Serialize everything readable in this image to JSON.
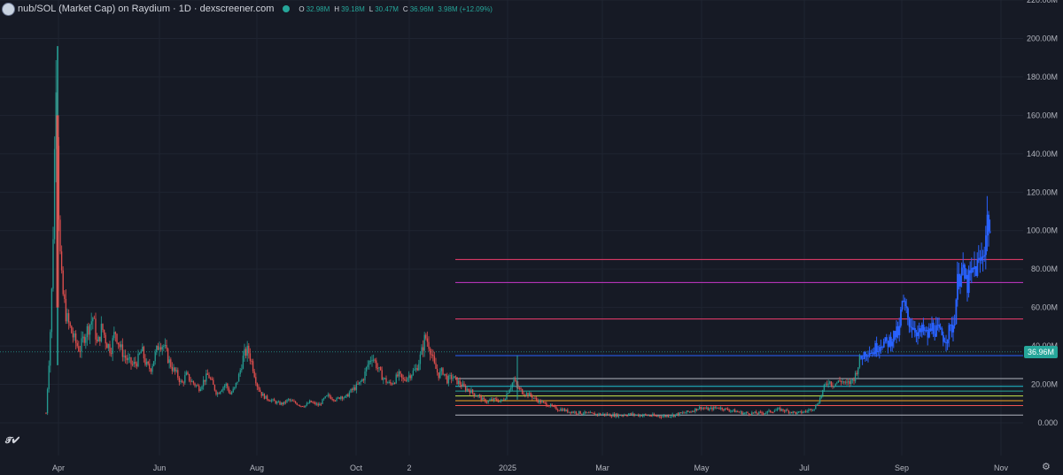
{
  "header": {
    "title": "nub/SOL (Market Cap) on Raydium · 1D · dexscreener.com",
    "ohlc": [
      {
        "k": "O",
        "v": "32.98M"
      },
      {
        "k": "H",
        "v": "39.18M"
      },
      {
        "k": "L",
        "v": "30.47M"
      },
      {
        "k": "C",
        "v": "36.96M"
      },
      {
        "k": "",
        "v": "3.98M (+12.09%)"
      }
    ]
  },
  "price_tag": "36.96M",
  "icons": {
    "tradingview_logo": "tradingview-logo",
    "settings": "gear-icon"
  },
  "colors": {
    "background": "#161a25",
    "up": "#26a69a",
    "down": "#ef5350",
    "blue_series": "#2962ff"
  },
  "chart_data": {
    "type": "candlestick",
    "x_axis_labels": [
      "Apr",
      "Jun",
      "Aug",
      "Oct",
      "2",
      "2025",
      "Mar",
      "May",
      "Jul",
      "Sep",
      "Nov"
    ],
    "y_axis_labels": [
      "0.000",
      "20.00M",
      "40.00M",
      "60.00M",
      "80.00M",
      "100.00M",
      "120.00M",
      "140.00M",
      "160.00M",
      "180.00M",
      "200.00M",
      "220.00M"
    ],
    "ylim": [
      0,
      220
    ],
    "y_unit": "M",
    "current_price": 36.96,
    "horizontal_levels": [
      {
        "value": 85,
        "color": "#f23c6e"
      },
      {
        "value": 73,
        "color": "#c837c8"
      },
      {
        "value": 54,
        "color": "#f23c6e"
      },
      {
        "value": 35,
        "color": "#2962ff"
      },
      {
        "value": 23,
        "color": "#b2b5be"
      },
      {
        "value": 19,
        "color": "#21c5d6"
      },
      {
        "value": 16.5,
        "color": "#26a69a"
      },
      {
        "value": 14,
        "color": "#c8e64c"
      },
      {
        "value": 11.5,
        "color": "#f5a623"
      },
      {
        "value": 9,
        "color": "#ef5350"
      },
      {
        "value": 4,
        "color": "#b2b5be"
      }
    ],
    "price_path_approx": [
      {
        "t": "late Mar",
        "v": 5
      },
      {
        "t": "early Apr",
        "v": 190
      },
      {
        "t": "mid Apr",
        "v": 60
      },
      {
        "t": "May",
        "v": 45
      },
      {
        "t": "Jun",
        "v": 42
      },
      {
        "t": "Jul",
        "v": 25
      },
      {
        "t": "Aug",
        "v": 18
      },
      {
        "t": "Sep",
        "v": 12
      },
      {
        "t": "Oct",
        "v": 20
      },
      {
        "t": "Nov",
        "v": 35
      },
      {
        "t": "Dec",
        "v": 20
      },
      {
        "t": "2025",
        "v": 14
      },
      {
        "t": "Mar",
        "v": 5
      },
      {
        "t": "May",
        "v": 8
      },
      {
        "t": "Jul",
        "v": 15
      },
      {
        "t": "Aug",
        "v": 38
      },
      {
        "t": "Sep",
        "v": 60
      },
      {
        "t": "Oct",
        "v": 80
      },
      {
        "t": "late Oct",
        "v": 100
      }
    ]
  }
}
